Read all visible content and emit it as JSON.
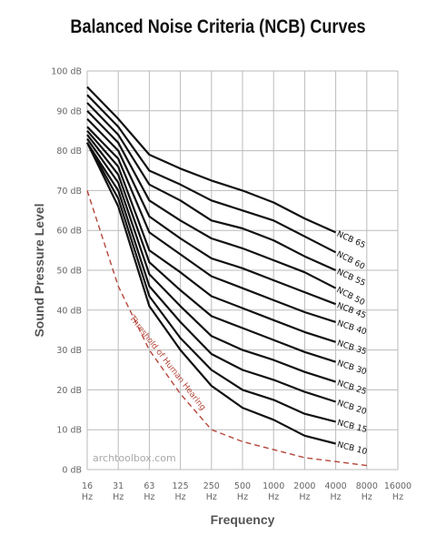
{
  "chart_data": {
    "type": "line",
    "title": "Balanced Noise Criteria (NCB) Curves",
    "xlabel": "Frequency",
    "ylabel": "Sound Pressure Level",
    "x_scale": "log2",
    "x": [
      "16",
      "31",
      "63",
      "125",
      "250",
      "500",
      "1000",
      "2000",
      "4000",
      "8000",
      "16000"
    ],
    "x_unit": "Hz",
    "y_ticks": [
      "0 dB",
      "10 dB",
      "20 dB",
      "30 dB",
      "40 dB",
      "50 dB",
      "60 dB",
      "70 dB",
      "80 dB",
      "90 dB",
      "100 dB"
    ],
    "ylim": [
      0,
      100
    ],
    "grid": true,
    "series": [
      {
        "name": "NCB 65",
        "values": [
          96,
          88,
          79,
          75.5,
          72.5,
          70,
          67,
          63,
          59.5,
          null,
          null
        ]
      },
      {
        "name": "NCB 60",
        "values": [
          94,
          86,
          75,
          71.5,
          67.5,
          65,
          62.5,
          58.5,
          54.5,
          null,
          null
        ]
      },
      {
        "name": "NCB 55",
        "values": [
          92,
          84,
          71.5,
          67.5,
          62.5,
          60.5,
          57.5,
          53.5,
          50,
          null,
          null
        ]
      },
      {
        "name": "NCB 50",
        "values": [
          90,
          82,
          67.5,
          62.5,
          58,
          55.5,
          52.5,
          49.5,
          45.5,
          null,
          null
        ]
      },
      {
        "name": "NCB 45",
        "values": [
          88,
          80,
          63.5,
          58,
          53,
          50.5,
          47.5,
          44.5,
          41.5,
          null,
          null
        ]
      },
      {
        "name": "NCB 40",
        "values": [
          86,
          78,
          59.5,
          54,
          48.5,
          45.5,
          42.5,
          39.5,
          37,
          null,
          null
        ]
      },
      {
        "name": "NCB 35",
        "values": [
          85,
          76,
          55,
          49.5,
          43.5,
          40.5,
          37.5,
          34.5,
          32,
          null,
          null
        ]
      },
      {
        "name": "NCB 30",
        "values": [
          84,
          74,
          52,
          45,
          38.5,
          35.5,
          32.5,
          29.5,
          27,
          null,
          null
        ]
      },
      {
        "name": "NCB 25",
        "values": [
          83,
          72,
          49,
          41,
          33.5,
          30,
          27.5,
          24.5,
          22,
          null,
          null
        ]
      },
      {
        "name": "NCB 20",
        "values": [
          82,
          70,
          46,
          37,
          29,
          25,
          22.5,
          19.5,
          17,
          null,
          null
        ]
      },
      {
        "name": "NCB 15",
        "values": [
          82,
          68,
          43.5,
          33,
          25,
          20,
          17.5,
          14,
          12,
          null,
          null
        ]
      },
      {
        "name": "NCB 10",
        "values": [
          82,
          66,
          41,
          30,
          21,
          15.5,
          12.5,
          8.5,
          6.5,
          null,
          null
        ]
      },
      {
        "name": "Threshold of Human Hearing",
        "values": [
          70,
          46,
          30,
          19,
          10,
          7,
          5,
          3,
          2,
          1,
          null
        ]
      }
    ]
  },
  "watermark": "archtoolbox.com",
  "colors": {
    "curves": "#111111",
    "threshold": "#b5463a",
    "grid": "#bbbbbb",
    "axis_text": "#666666"
  }
}
